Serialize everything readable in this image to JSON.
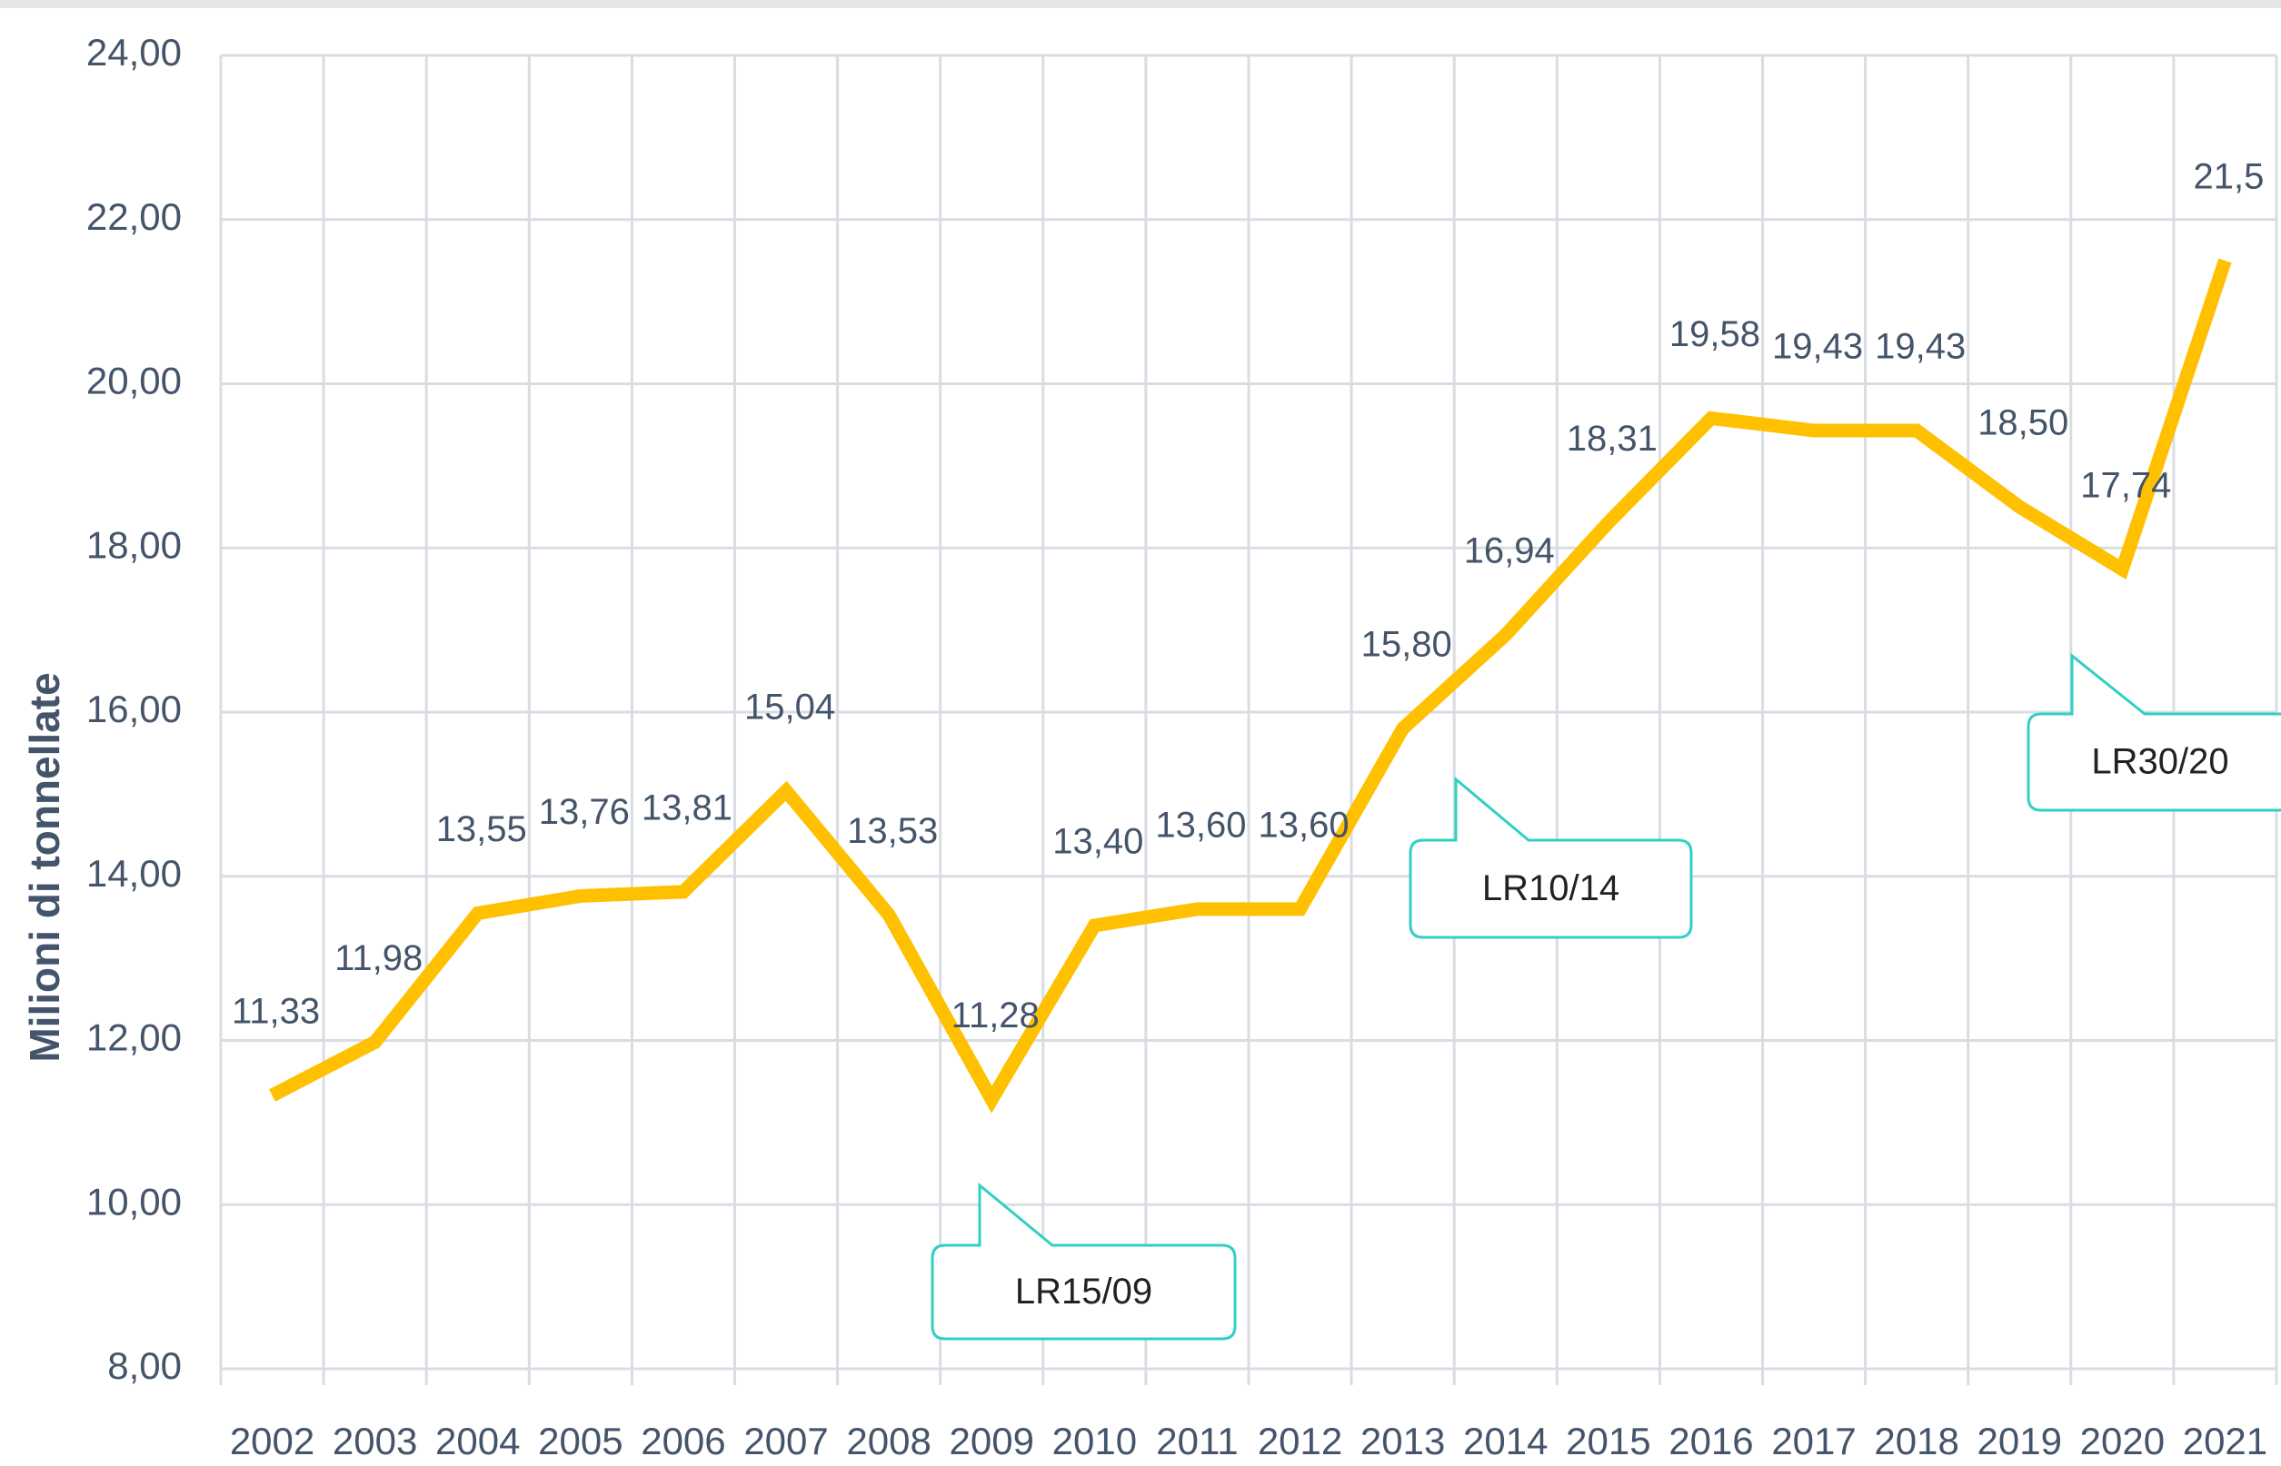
{
  "chart_data": {
    "type": "line",
    "y_label": "Milioni di tonnellate",
    "categories": [
      "2002",
      "2003",
      "2004",
      "2005",
      "2006",
      "2007",
      "2008",
      "2009",
      "2010",
      "2011",
      "2012",
      "2013",
      "2014",
      "2015",
      "2016",
      "2017",
      "2018",
      "2019",
      "2020",
      "2021"
    ],
    "series": [
      {
        "name": "Milioni di tonnellate",
        "color": "#FFC000",
        "values": [
          11.33,
          11.98,
          13.55,
          13.76,
          13.81,
          15.04,
          13.53,
          11.28,
          13.4,
          13.6,
          13.6,
          15.8,
          16.94,
          18.31,
          19.58,
          19.43,
          19.43,
          18.5,
          17.74,
          21.5
        ],
        "value_labels": [
          "11,33",
          "11,98",
          "13,55",
          "13,76",
          "13,81",
          "15,04",
          "13,53",
          "11,28",
          "13,40",
          "13,60",
          "13,60",
          "15,80",
          "16,94",
          "18,31",
          "19,58",
          "19,43",
          "19,43",
          "18,50",
          "17,74",
          "21,5"
        ]
      }
    ],
    "ylim": [
      8,
      24
    ],
    "yticks": [
      {
        "value": 8,
        "label": "8,00"
      },
      {
        "value": 10,
        "label": "10,00"
      },
      {
        "value": 12,
        "label": "12,00"
      },
      {
        "value": 14,
        "label": "14,00"
      },
      {
        "value": 16,
        "label": "16,00"
      },
      {
        "value": 18,
        "label": "18,00"
      },
      {
        "value": 20,
        "label": "20,00"
      },
      {
        "value": 22,
        "label": "22,00"
      },
      {
        "value": 24,
        "label": "24,00"
      }
    ],
    "grid": true,
    "annotations": [
      {
        "text": "LR15/09"
      },
      {
        "text": "LR10/14"
      },
      {
        "text": "LR30/20"
      }
    ]
  }
}
